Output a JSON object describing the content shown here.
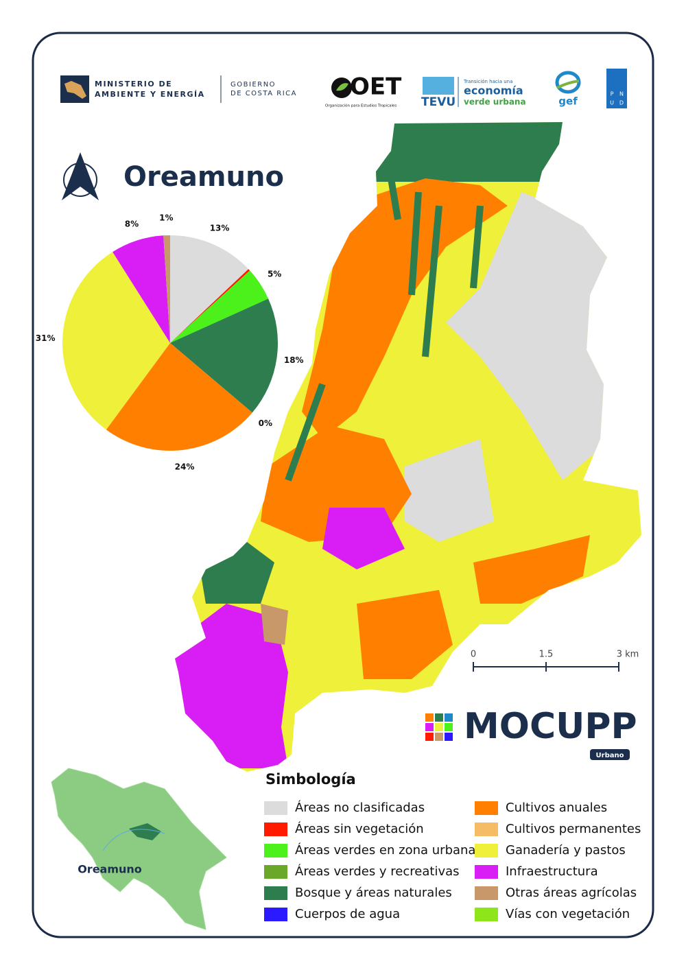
{
  "header": {
    "ministry": [
      "MINISTERIO DE",
      "AMBIENTE Y ENERGÍA"
    ],
    "government": [
      "GOBIERNO",
      "DE COSTA RICA"
    ],
    "oet": "OET",
    "oet_subtitle": "Organización para Estudios Tropicales",
    "tevu": "TEVU",
    "tevu_tagline": [
      "Transición hacia una",
      "economía",
      "verde urbana"
    ],
    "gef": "gef",
    "pnud": [
      "P",
      "N",
      "U",
      "D"
    ]
  },
  "title": "Oreamuno",
  "chart_data": {
    "type": "pie",
    "legend_title": "Simbología",
    "categories": [
      "Áreas no clasificadas",
      "Áreas sin vegetación",
      "Áreas verdes en zona urbana",
      "Áreas verdes y recreativas",
      "Bosque y áreas naturales",
      "Cuerpos de agua",
      "Cultivos anuales",
      "Cultivos permanentes",
      "Ganadería y pastos",
      "Infraestructura",
      "Otras áreas agrícolas",
      "Vías con vegetación"
    ],
    "values": [
      13,
      0.3,
      5,
      0,
      18,
      0,
      24,
      0,
      31,
      8,
      1,
      0
    ],
    "value_labels": [
      "13%",
      null,
      "5%",
      null,
      "18%",
      "0%",
      "24%",
      null,
      "31%",
      "8%",
      "1%",
      null
    ],
    "colors": [
      "#dcdcdc",
      "#ff1a00",
      "#4cf01a",
      "#6aa82a",
      "#2e7d4f",
      "#2b1aff",
      "#ff8000",
      "#f5bb65",
      "#eef03a",
      "#d81ef5",
      "#c8986a",
      "#8ee61a"
    ]
  },
  "scale": {
    "labels": [
      "0",
      "1.5",
      "3 km"
    ]
  },
  "brand": {
    "name": "MOCUPP",
    "subtitle": "Urbano"
  },
  "inset": {
    "label": "Oreamuno"
  }
}
